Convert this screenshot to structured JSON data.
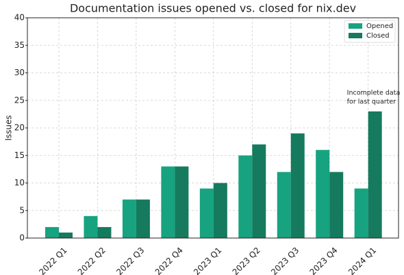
{
  "chart_data": {
    "type": "bar",
    "title": "Documentation issues opened vs. closed for nix.dev",
    "y_label": "Issues",
    "categories": [
      "2022 Q1",
      "2022 Q2",
      "2022 Q3",
      "2022 Q4",
      "2023 Q1",
      "2023 Q2",
      "2023 Q3",
      "2023 Q4",
      "2024 Q1"
    ],
    "series": [
      {
        "name": "Opened",
        "color": "#17a37f",
        "values": [
          2,
          4,
          7,
          13,
          9,
          15,
          12,
          16,
          9
        ]
      },
      {
        "name": "Closed",
        "color": "#157a5e",
        "values": [
          1,
          2,
          7,
          13,
          10,
          17,
          19,
          12,
          23
        ]
      }
    ],
    "ylim": [
      0,
      40
    ],
    "yticks": [
      0,
      5,
      10,
      15,
      20,
      25,
      30,
      35,
      40
    ],
    "grid": true,
    "legend": "upper right",
    "annotation": [
      "Incomplete data",
      "for last quarter"
    ]
  }
}
